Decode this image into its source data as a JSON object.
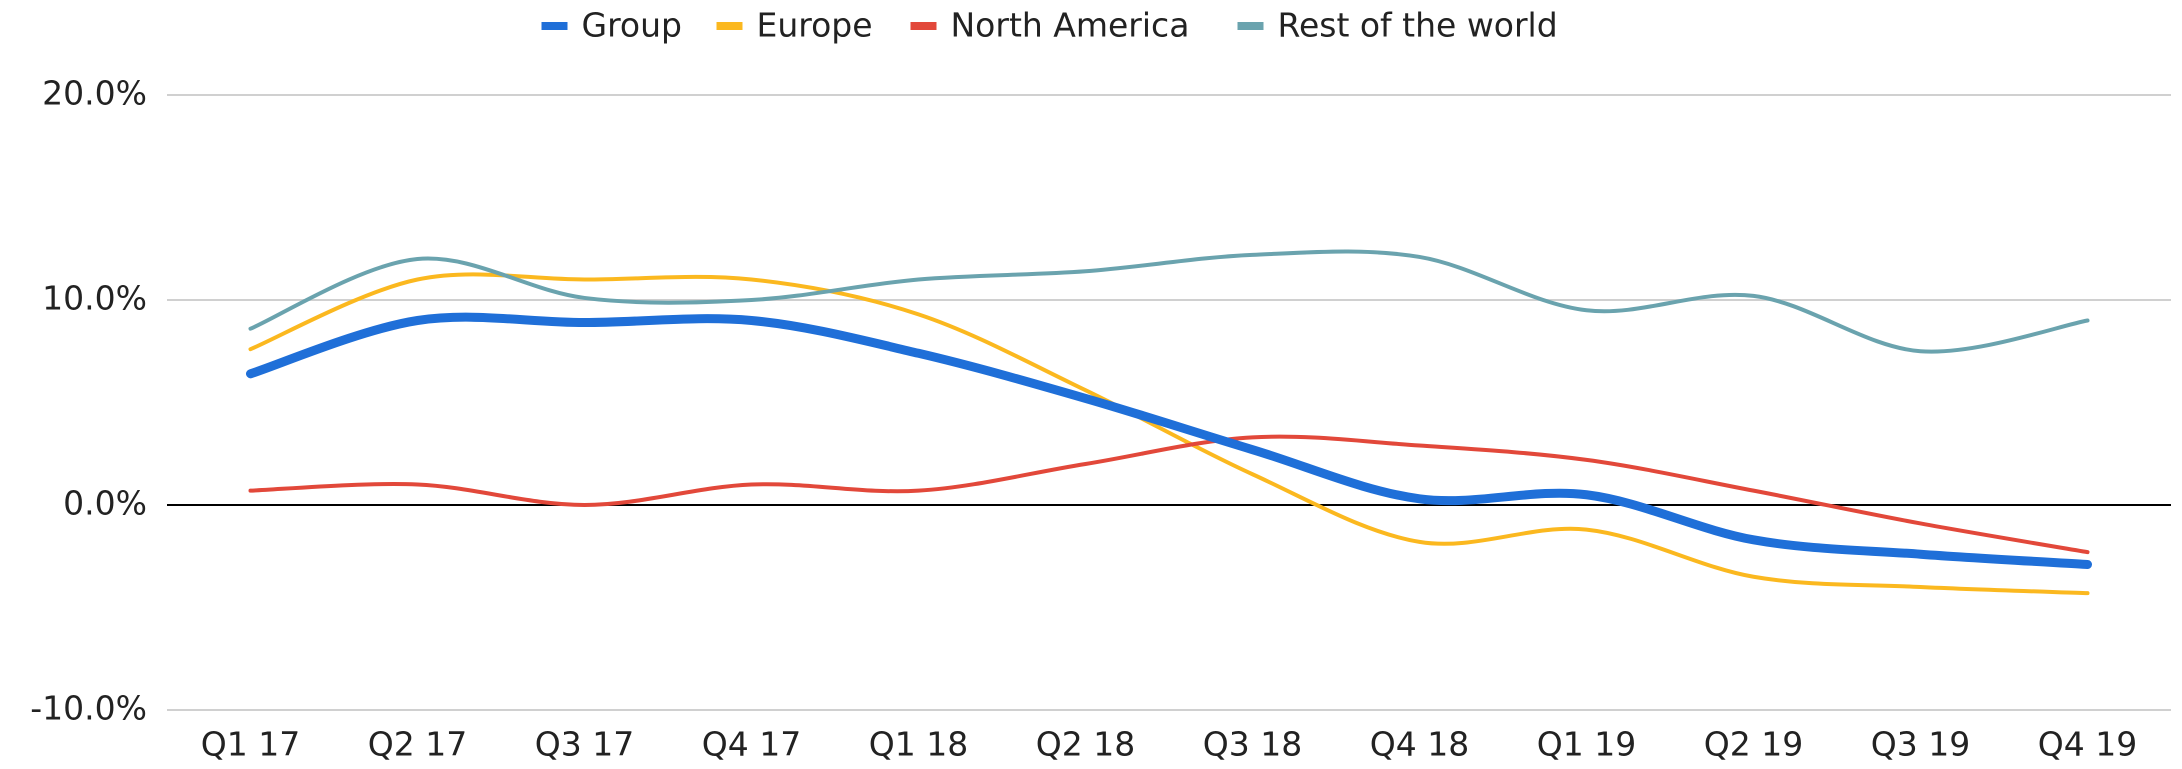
{
  "chart_data": {
    "type": "line",
    "categories": [
      "Q1 17",
      "Q2 17",
      "Q3 17",
      "Q4 17",
      "Q1 18",
      "Q2 18",
      "Q3 18",
      "Q4 18",
      "Q1 19",
      "Q2 19",
      "Q3 19",
      "Q4 19"
    ],
    "series": [
      {
        "name": "Group",
        "color": "#1f6fd8",
        "values": [
          6.4,
          9.0,
          8.9,
          9.0,
          7.4,
          5.2,
          2.7,
          0.3,
          0.5,
          -1.7,
          -2.4,
          -2.9
        ]
      },
      {
        "name": "Europe",
        "color": "#fbb81f",
        "values": [
          7.6,
          11.0,
          11.0,
          11.0,
          9.3,
          5.6,
          1.5,
          -1.8,
          -1.2,
          -3.5,
          -4.0,
          -4.3
        ]
      },
      {
        "name": "North America",
        "color": "#e2483a",
        "values": [
          0.7,
          1.0,
          0.0,
          1.0,
          0.7,
          2.0,
          3.3,
          2.9,
          2.2,
          0.7,
          -0.9,
          -2.3
        ]
      },
      {
        "name": "Rest of the world",
        "color": "#6aa3ae",
        "values": [
          8.6,
          12.0,
          10.1,
          10.0,
          11.0,
          11.4,
          12.2,
          12.1,
          9.5,
          10.2,
          7.5,
          9.0
        ]
      }
    ],
    "ylim": [
      -10,
      20
    ],
    "yticks": [
      {
        "value": -10,
        "label": "-10.0%"
      },
      {
        "value": 0,
        "label": "0.0%"
      },
      {
        "value": 10,
        "label": "10.0%"
      },
      {
        "value": 20,
        "label": "20.0%"
      }
    ],
    "grid": true,
    "legend": "top"
  }
}
